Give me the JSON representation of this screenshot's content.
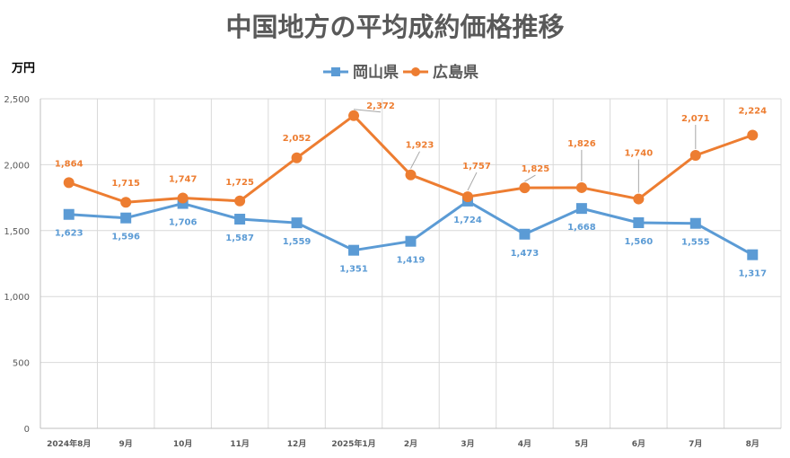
{
  "chart_data": {
    "type": "line",
    "title": "中国地方の平均成約価格推移",
    "ylabel": "万円",
    "xlabel": "",
    "ylim": [
      0,
      2500
    ],
    "yticks": [
      0,
      500,
      1000,
      1500,
      2000,
      2500
    ],
    "ytick_labels": [
      "0",
      "500",
      "1,000",
      "1,500",
      "2,000",
      "2,500"
    ],
    "categories": [
      "2024年8月",
      "9月",
      "10月",
      "11月",
      "12月",
      "2025年1月",
      "2月",
      "3月",
      "4月",
      "5月",
      "6月",
      "7月",
      "8月"
    ],
    "grid": true,
    "legend_position": "top",
    "series": [
      {
        "name": "岡山県",
        "color": "#5B9BD5",
        "marker": "square",
        "values": [
          1623,
          1596,
          1706,
          1587,
          1559,
          1351,
          1419,
          1724,
          1473,
          1668,
          1560,
          1555,
          1317
        ],
        "labels": [
          "1,623",
          "1,596",
          "1,706",
          "1,587",
          "1,559",
          "1,351",
          "1,419",
          "1,724",
          "1,473",
          "1,668",
          "1,560",
          "1,555",
          "1,317"
        ]
      },
      {
        "name": "広島県",
        "color": "#ED7D31",
        "marker": "circle",
        "values": [
          1864,
          1715,
          1747,
          1725,
          2052,
          2372,
          1923,
          1757,
          1825,
          1826,
          1740,
          2071,
          2224
        ],
        "labels": [
          "1,864",
          "1,715",
          "1,747",
          "1,725",
          "2,052",
          "2,372",
          "1,923",
          "1,757",
          "1,825",
          "1,826",
          "1,740",
          "2,071",
          "2,224"
        ]
      }
    ]
  }
}
